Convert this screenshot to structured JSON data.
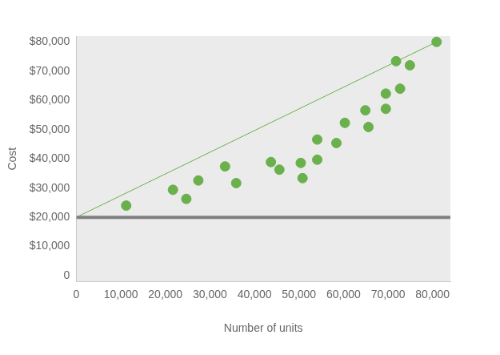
{
  "chart_data": {
    "type": "scatter",
    "x_label": "Number of units",
    "y_label": "Cost",
    "xlim": [
      0,
      84000
    ],
    "ylim": [
      -2000,
      82000
    ],
    "xticks": [
      0,
      {
        "value": 10000,
        "label": "10,000"
      },
      {
        "value": 20000,
        "label": "20,000"
      },
      {
        "value": 30000,
        "label": "30,000"
      },
      {
        "value": 40000,
        "label": "40,000"
      },
      {
        "value": 50000,
        "label": "50,000"
      },
      {
        "value": 60000,
        "label": "60,000"
      },
      {
        "value": 70000,
        "label": "70,000"
      },
      {
        "value": 80000,
        "label": "80,000"
      }
    ],
    "yticks": [
      0,
      {
        "value": 10000,
        "label": "$10,000"
      },
      {
        "value": 20000,
        "label": "$20,000"
      },
      {
        "value": 30000,
        "label": "$30,000"
      },
      {
        "value": 40000,
        "label": "$40,000"
      },
      {
        "value": 50000,
        "label": "$50,000"
      },
      {
        "value": 60000,
        "label": "$60,000"
      },
      {
        "value": 70000,
        "label": "$70,000"
      },
      {
        "value": 80000,
        "label": "$80,000"
      }
    ],
    "grid": false,
    "series": [
      {
        "type": "line",
        "color": "#808080",
        "x": [
          0,
          84000
        ],
        "values": [
          20000,
          20000
        ]
      },
      {
        "type": "line",
        "color": "#6ab04c",
        "x": [
          0,
          80900
        ],
        "values": [
          20000,
          80000
        ]
      },
      {
        "type": "scatter",
        "color": "#6ab04c",
        "x": [
          11200,
          21700,
          24700,
          27400,
          33400,
          35900,
          43700,
          45600,
          50400,
          50800,
          54100,
          54100,
          58400,
          60300,
          64900,
          65600,
          69500,
          69500,
          71800,
          72700,
          74900,
          80900
        ],
        "values": [
          24000,
          29400,
          26300,
          32600,
          37400,
          31700,
          38900,
          36300,
          38600,
          33400,
          46600,
          39700,
          45400,
          52300,
          56600,
          50900,
          62300,
          57100,
          73400,
          64000,
          72000,
          80000
        ]
      }
    ]
  }
}
